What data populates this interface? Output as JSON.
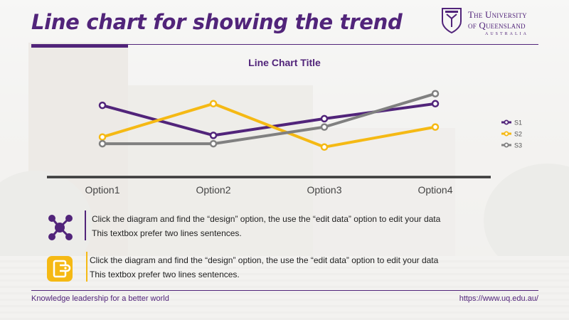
{
  "header": {
    "title": "Line chart for showing the trend",
    "logo_line1": "The University",
    "logo_line2": "of Queensland",
    "logo_line3": "AUSTRALIA"
  },
  "chart_data": {
    "type": "line",
    "title": "Line Chart Title",
    "categories": [
      "Option1",
      "Option2",
      "Option3",
      "Option4"
    ],
    "series": [
      {
        "name": "S1",
        "values": [
          4.3,
          2.5,
          3.5,
          4.4
        ],
        "color": "#51247a"
      },
      {
        "name": "S2",
        "values": [
          2.4,
          4.4,
          1.8,
          3.0
        ],
        "color": "#f5b914"
      },
      {
        "name": "S3",
        "values": [
          2.0,
          2.0,
          3.0,
          5.0
        ],
        "color": "#808080"
      }
    ],
    "ylim": [
      0,
      5.5
    ],
    "legend_position": "right",
    "grid": false
  },
  "info": [
    {
      "icon": "network-icon",
      "line1": "Click the diagram and find the “design” option, the use the “edit data” option to edit your data",
      "line2": "This textbox prefer two lines sentences.",
      "accent": "#51247a"
    },
    {
      "icon": "book-icon",
      "line1": "Click the diagram and find the “design” option, the use the “edit data” option to edit your data",
      "line2": "This textbox prefer two lines sentences.",
      "accent": "#f5b914"
    }
  ],
  "footer": {
    "tagline": "Knowledge leadership for a better world",
    "url": "https://www.uq.edu.au/"
  },
  "colors": {
    "brand": "#51247a",
    "accent": "#f5b914"
  }
}
